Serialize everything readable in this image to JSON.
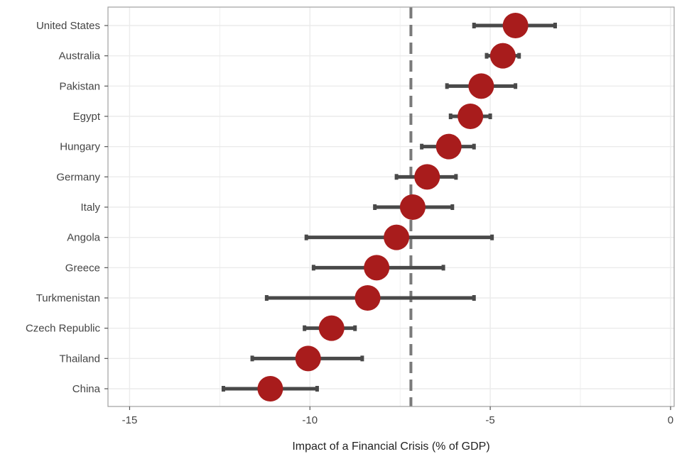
{
  "chart_data": {
    "type": "scatter",
    "title": "",
    "xlabel": "Impact of a Financial Crisis (% of GDP)",
    "ylabel": "",
    "xlim": [
      -15.6,
      0.1
    ],
    "xticks": [
      -15,
      -10,
      -5,
      0
    ],
    "xtick_labels": [
      "-15",
      "-10",
      "-5",
      "0"
    ],
    "categories": [
      "United States",
      "Australia",
      "Pakistan",
      "Egypt",
      "Hungary",
      "Germany",
      "Italy",
      "Angola",
      "Greece",
      "Turkmenistan",
      "Czech Republic",
      "Thailand",
      "China"
    ],
    "values": [
      -4.3,
      -4.65,
      -5.25,
      -5.55,
      -6.15,
      -6.75,
      -7.15,
      -7.6,
      -8.15,
      -8.4,
      -9.4,
      -10.05,
      -11.1
    ],
    "lower": [
      -5.45,
      -5.1,
      -6.2,
      -6.1,
      -6.9,
      -7.6,
      -8.2,
      -10.1,
      -9.9,
      -11.2,
      -10.15,
      -11.6,
      -12.4
    ],
    "upper": [
      -3.2,
      -4.2,
      -4.3,
      -5.0,
      -5.45,
      -5.95,
      -6.05,
      -4.95,
      -6.3,
      -5.45,
      -8.75,
      -8.55,
      -9.8
    ],
    "reference_line": {
      "x": -7.2,
      "style": "dashed"
    },
    "grid": true,
    "legend": "none",
    "colors": {
      "point": "#a81c1c",
      "error_bar": "#494949",
      "reference": "#7a7a7a",
      "grid": "#ebebeb",
      "border": "#a0a0a0"
    }
  }
}
